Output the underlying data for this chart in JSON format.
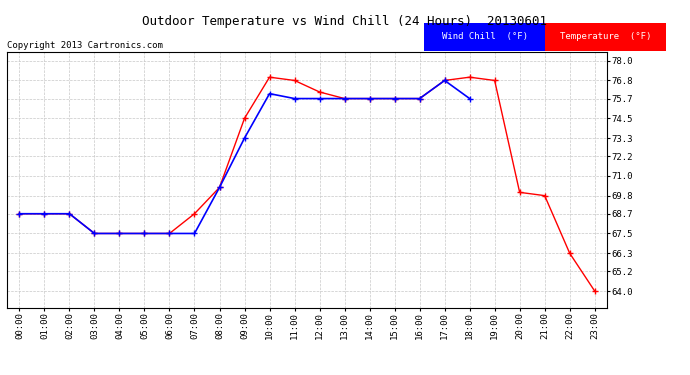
{
  "title": "Outdoor Temperature vs Wind Chill (24 Hours)  20130601",
  "copyright": "Copyright 2013 Cartronics.com",
  "hours": [
    "00:00",
    "01:00",
    "02:00",
    "03:00",
    "04:00",
    "05:00",
    "06:00",
    "07:00",
    "08:00",
    "09:00",
    "10:00",
    "11:00",
    "12:00",
    "13:00",
    "14:00",
    "15:00",
    "16:00",
    "17:00",
    "18:00",
    "19:00",
    "20:00",
    "21:00",
    "22:00",
    "23:00"
  ],
  "temperature": [
    68.7,
    68.7,
    68.7,
    67.5,
    67.5,
    67.5,
    67.5,
    68.7,
    70.3,
    74.5,
    77.0,
    76.8,
    76.1,
    75.7,
    75.7,
    75.7,
    75.7,
    76.8,
    77.0,
    76.8,
    70.0,
    69.8,
    66.3,
    64.0
  ],
  "wind_chill": [
    68.7,
    68.7,
    68.7,
    67.5,
    67.5,
    67.5,
    67.5,
    67.5,
    70.3,
    73.3,
    76.0,
    75.7,
    75.7,
    75.7,
    75.7,
    75.7,
    75.7,
    76.8,
    75.7,
    null,
    null,
    null,
    null,
    null
  ],
  "temp_color": "#ff0000",
  "wind_color": "#0000ff",
  "bg_color": "#ffffff",
  "plot_bg": "#ffffff",
  "grid_color": "#c8c8c8",
  "ylim_min": 63.0,
  "ylim_max": 78.5,
  "yticks": [
    64.0,
    65.2,
    66.3,
    67.5,
    68.7,
    69.8,
    71.0,
    72.2,
    73.3,
    74.5,
    75.7,
    76.8,
    78.0
  ],
  "legend_wind_text": "Wind Chill  (°F)",
  "legend_temp_text": "Temperature  (°F)"
}
